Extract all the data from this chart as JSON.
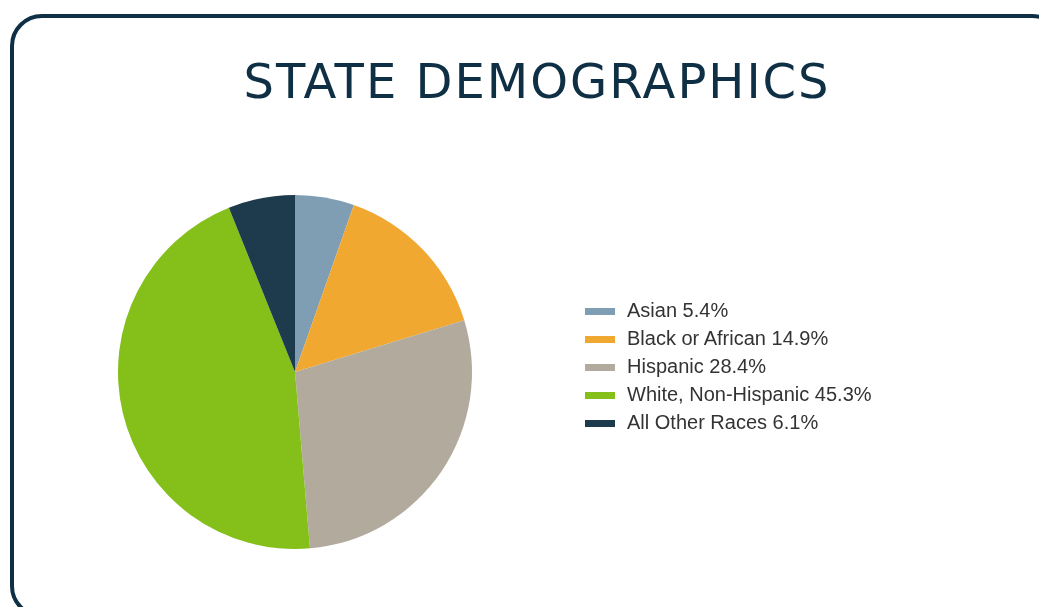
{
  "chart_data": {
    "type": "pie",
    "title": "STATE DEMOGRAPHICS",
    "categories": [
      "Asian 5.4%",
      "Black or African 14.9%",
      "Hispanic 28.4%",
      "White, Non-Hispanic 45.3%",
      "All Other Races 6.1%"
    ],
    "values": [
      5.4,
      14.9,
      28.4,
      45.3,
      6.1
    ],
    "colors": [
      "#7f9db3",
      "#f0a830",
      "#b3aa9e",
      "#84bf1a",
      "#1e3a4d"
    ],
    "legend": "right"
  }
}
